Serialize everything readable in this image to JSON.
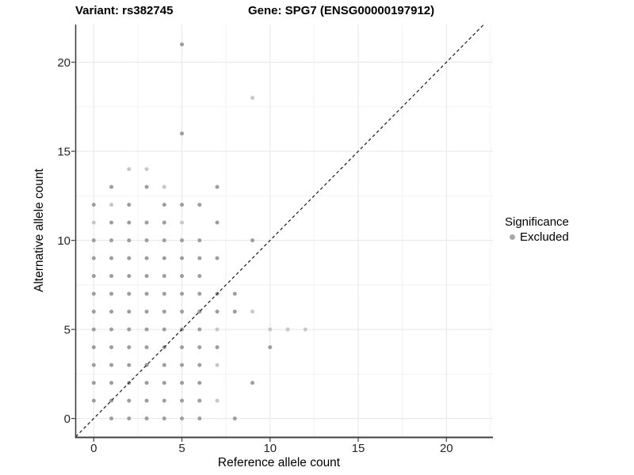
{
  "header": {
    "variant_title": "Variant: rs382745",
    "gene_title": "Gene: SPG7 (ENSG00000197912)"
  },
  "axes": {
    "x_label": "Reference allele count",
    "y_label": "Alternative allele count"
  },
  "legend": {
    "title": "Significance",
    "items": [
      {
        "label": "Excluded",
        "color": "#a8a8a8"
      }
    ]
  },
  "colors": {
    "point_medium": "#9d9d9d",
    "point_light": "#c7c7c7",
    "grid_major": "#e6e6e6",
    "grid_minor": "#f2f2f2",
    "axis_line": "#404040",
    "tick_text": "#262626",
    "identity_line": "#1a1a1a"
  },
  "chart_data": {
    "type": "scatter",
    "title": "Variant: rs382745  |  Gene: SPG7 (ENSG00000197912)",
    "xlabel": "Reference allele count",
    "ylabel": "Alternative allele count",
    "xlim": [
      -1.1,
      22.6
    ],
    "ylim": [
      -1.1,
      22.1
    ],
    "x_ticks": [
      0,
      5,
      10,
      15,
      20
    ],
    "y_ticks": [
      0,
      5,
      10,
      15,
      20
    ],
    "x_minor_ticks": [
      2.5,
      7.5,
      12.5,
      17.5,
      22.5
    ],
    "y_minor_ticks": [
      2.5,
      7.5,
      12.5,
      17.5
    ],
    "grid": true,
    "legend_position": "right",
    "identity_line": {
      "slope": 1,
      "intercept": 0,
      "style": "dashed"
    },
    "series": [
      {
        "name": "Excluded",
        "points": [
          [
            1,
            13
          ],
          [
            3,
            13
          ],
          [
            7,
            13
          ],
          [
            0,
            12
          ],
          [
            2,
            12
          ],
          [
            4,
            12
          ],
          [
            5,
            12
          ],
          [
            6,
            12
          ],
          [
            1,
            11
          ],
          [
            2,
            11
          ],
          [
            3,
            11
          ],
          [
            4,
            11
          ],
          [
            7,
            11
          ],
          [
            0,
            10
          ],
          [
            1,
            10
          ],
          [
            2,
            10
          ],
          [
            3,
            10
          ],
          [
            4,
            10
          ],
          [
            5,
            10
          ],
          [
            6,
            10
          ],
          [
            9,
            10
          ],
          [
            0,
            9
          ],
          [
            1,
            9
          ],
          [
            2,
            9
          ],
          [
            3,
            9
          ],
          [
            4,
            9
          ],
          [
            5,
            9
          ],
          [
            6,
            9
          ],
          [
            7,
            9
          ],
          [
            0,
            8
          ],
          [
            1,
            8
          ],
          [
            2,
            8
          ],
          [
            3,
            8
          ],
          [
            4,
            8
          ],
          [
            5,
            8
          ],
          [
            6,
            8
          ],
          [
            0,
            7
          ],
          [
            1,
            7
          ],
          [
            2,
            7
          ],
          [
            3,
            7
          ],
          [
            4,
            7
          ],
          [
            5,
            7
          ],
          [
            6,
            7
          ],
          [
            7,
            7
          ],
          [
            8,
            7
          ],
          [
            0,
            6
          ],
          [
            1,
            6
          ],
          [
            2,
            6
          ],
          [
            3,
            6
          ],
          [
            4,
            6
          ],
          [
            5,
            6
          ],
          [
            6,
            6
          ],
          [
            7,
            6
          ],
          [
            8,
            6
          ],
          [
            0,
            5
          ],
          [
            1,
            5
          ],
          [
            2,
            5
          ],
          [
            3,
            5
          ],
          [
            4,
            5
          ],
          [
            5,
            5
          ],
          [
            6,
            5
          ],
          [
            0,
            4
          ],
          [
            1,
            4
          ],
          [
            2,
            4
          ],
          [
            3,
            4
          ],
          [
            4,
            4
          ],
          [
            5,
            4
          ],
          [
            6,
            4
          ],
          [
            7,
            4
          ],
          [
            10,
            4
          ],
          [
            0,
            3
          ],
          [
            1,
            3
          ],
          [
            2,
            3
          ],
          [
            3,
            3
          ],
          [
            4,
            3
          ],
          [
            5,
            3
          ],
          [
            6,
            3
          ],
          [
            0,
            2
          ],
          [
            1,
            2
          ],
          [
            2,
            2
          ],
          [
            3,
            2
          ],
          [
            4,
            2
          ],
          [
            5,
            2
          ],
          [
            6,
            2
          ],
          [
            9,
            2
          ],
          [
            0,
            1
          ],
          [
            1,
            1
          ],
          [
            2,
            1
          ],
          [
            3,
            1
          ],
          [
            4,
            1
          ],
          [
            5,
            1
          ],
          [
            6,
            1
          ],
          [
            1,
            0
          ],
          [
            2,
            0
          ],
          [
            3,
            0
          ],
          [
            4,
            0
          ],
          [
            5,
            0
          ],
          [
            6,
            0
          ],
          [
            8,
            0
          ],
          [
            5,
            16
          ],
          [
            5,
            21
          ]
        ],
        "points_light": [
          [
            2,
            14
          ],
          [
            3,
            14
          ],
          [
            4,
            13
          ],
          [
            1,
            12
          ],
          [
            0,
            11
          ],
          [
            5,
            11
          ],
          [
            9,
            18
          ],
          [
            9,
            6
          ],
          [
            7,
            5
          ],
          [
            10,
            5
          ],
          [
            11,
            5
          ],
          [
            12,
            5
          ],
          [
            7,
            3
          ],
          [
            7,
            1
          ]
        ]
      }
    ]
  }
}
